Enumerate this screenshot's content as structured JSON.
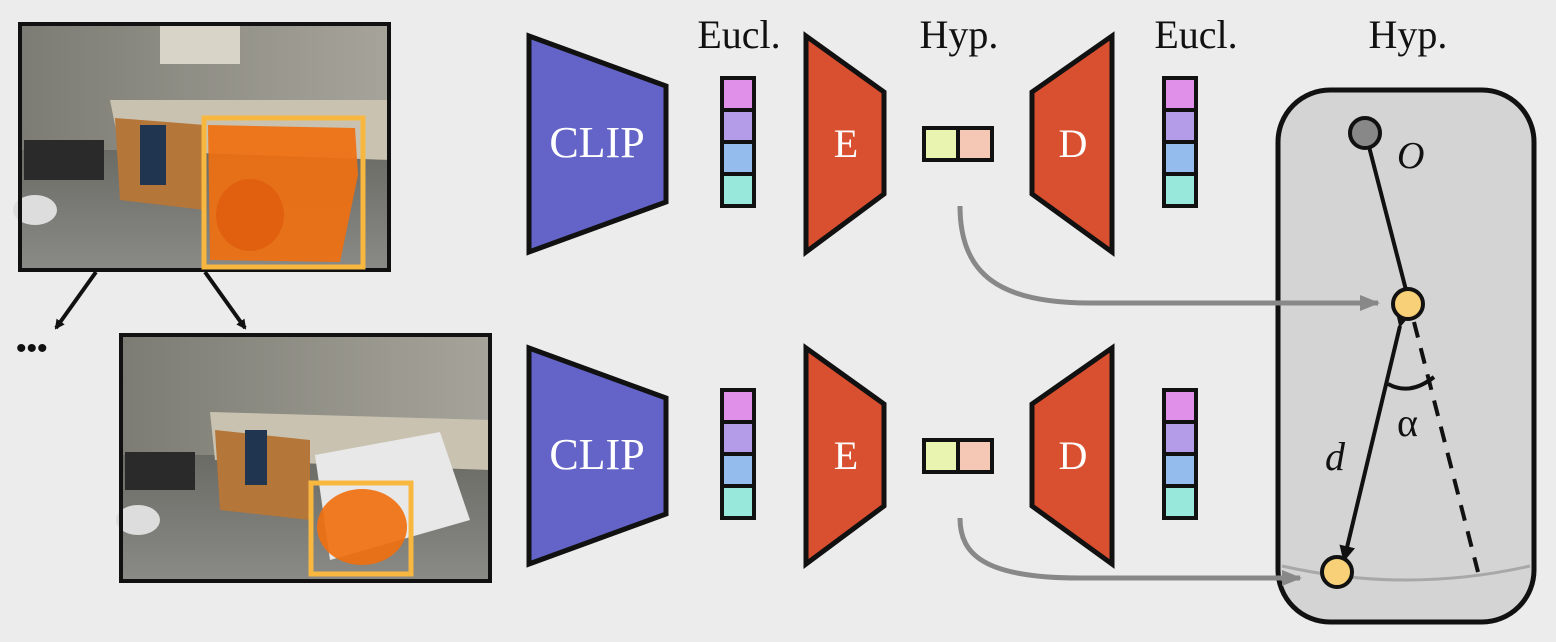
{
  "headers": {
    "eucl_1": "Eucl.",
    "hyp_1": "Hyp.",
    "eucl_2": "Eucl.",
    "hyp_2": "Hyp."
  },
  "top_row": {
    "encoder_label": "CLIP",
    "e_label": "E",
    "d_label": "D"
  },
  "bottom_row": {
    "encoder_label": "CLIP",
    "e_label": "E",
    "d_label": "D"
  },
  "ellipsis": "•••",
  "hyperbolic_space": {
    "origin_label": "O",
    "distance_label": "d",
    "angle_label": "α"
  },
  "colors": {
    "background": "#ececec",
    "clip": "#6464c8",
    "e_d": "#d95030",
    "feat_1": "#e090e8",
    "feat_2": "#b49ce8",
    "feat_3": "#94bcec",
    "feat_4": "#98e8dc",
    "hyp_left": "#e8f4b0",
    "hyp_right": "#f4c8b4",
    "mask": "#f07010",
    "bbox": "#f8b840",
    "point": "#f8d078",
    "origin": "#888888",
    "panel": "#d4d4d4",
    "arrow_gray": "#888888"
  }
}
